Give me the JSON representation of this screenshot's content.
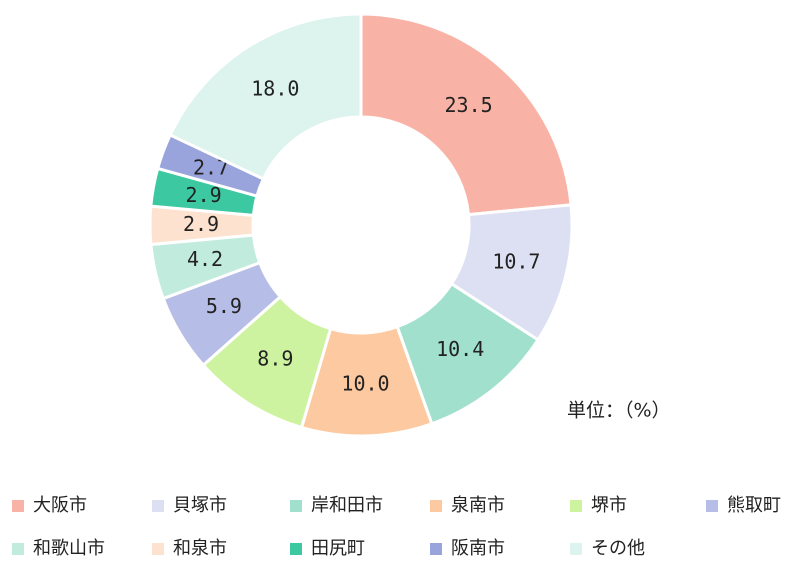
{
  "chart_data": {
    "type": "donut",
    "categories": [
      "大阪市",
      "貝塚市",
      "岸和田市",
      "泉南市",
      "堺市",
      "熊取町",
      "和歌山市",
      "和泉市",
      "田尻町",
      "阪南市",
      "その他"
    ],
    "values": [
      23.5,
      10.7,
      10.4,
      10.0,
      8.9,
      5.9,
      4.2,
      2.9,
      2.9,
      2.7,
      18.0
    ],
    "value_labels": [
      "23.5",
      "10.7",
      "10.4",
      "10.0",
      "8.9",
      "5.9",
      "4.2",
      "2.9",
      "2.9",
      "2.7",
      "18.0"
    ],
    "colors": [
      "#f9b3a6",
      "#dde0f3",
      "#a0e0cc",
      "#fdc9a0",
      "#cdf3a0",
      "#b6bde6",
      "#c1ebdd",
      "#fde3cf",
      "#3cc8a0",
      "#99a4dd",
      "#dcf3ee"
    ],
    "unit_label": "単位：（%）"
  }
}
